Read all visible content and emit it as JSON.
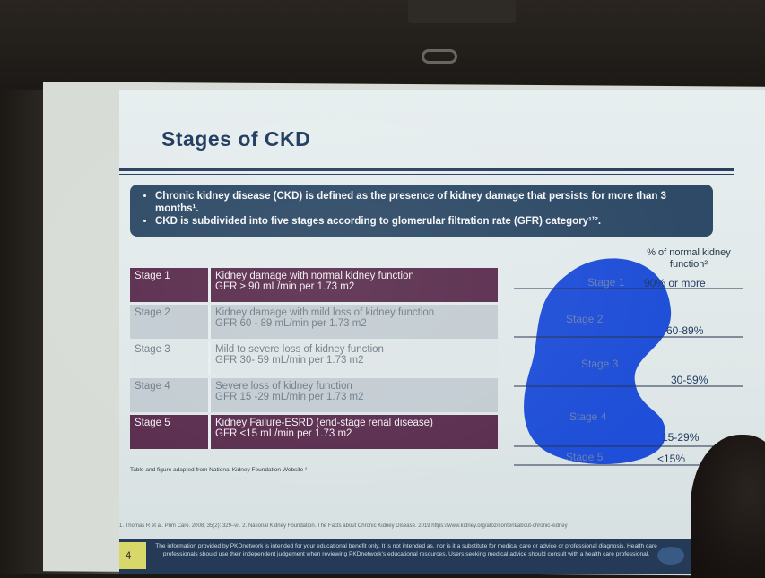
{
  "slide": {
    "title": "Stages of CKD",
    "bullets": [
      "Chronic kidney disease (CKD) is defined as the presence of kidney damage that persists for more than 3 months¹.",
      "CKD is subdivided into five stages according to glomerular filtration rate (GFR) category¹ʼ²."
    ],
    "table": [
      {
        "stage": "Stage 1",
        "desc": "Kidney damage with normal kidney function",
        "gfr": "GFR ≥ 90 mL/min per 1.73 m2"
      },
      {
        "stage": "Stage 2",
        "desc": "Kidney damage with mild loss of kidney function",
        "gfr": "GFR 60 - 89 mL/min per 1.73 m2"
      },
      {
        "stage": "Stage 3",
        "desc": "Mild to severe loss of kidney function",
        "gfr": "GFR 30- 59 mL/min per 1.73 m2"
      },
      {
        "stage": "Stage 4",
        "desc": "Severe loss of kidney function",
        "gfr": "GFR 15 -29 mL/min per 1.73 m2"
      },
      {
        "stage": "Stage 5",
        "desc": "Kidney Failure-ESRD (end-stage renal disease)",
        "gfr": "GFR <15 mL/min per 1.73 m2"
      }
    ],
    "caption": "Table and figure adapted from National Kidney Foundation Website ²",
    "kidney_header": "% of normal kidney function²",
    "kidney_stages": [
      "Stage 1",
      "Stage 2",
      "Stage 3",
      "Stage 4",
      "Stage 5"
    ],
    "kidney_pcts": [
      "90% or more",
      "60-89%",
      "30-59%",
      "15-29%",
      "<15%"
    ],
    "footnote": "1. Thomas R et al. Prim Care. 2008; 35(2): 329–vii.  2. National Kidney Foundation. The Facts about Chronic Kidney Disease. 2019 https://www.kidney.org/atoz/content/about-chronic-kidney",
    "page_number": "4",
    "disclaimer": "The information provided by PKDnetwork is intended for your educational benefit only. It is not intended as, nor is it a substitute for medical care or advice or professional diagnosis. Health care professionals should use their independent judgement when reviewing PKDnetwork's educational resources. Users seeking medical advice should consult with a health care professional.",
    "colors": {
      "kidney": "#1f4fd8",
      "dark_row": "#5a2d4e",
      "bullet_box": "#2e4a66",
      "title": "#1f3a5f"
    }
  }
}
